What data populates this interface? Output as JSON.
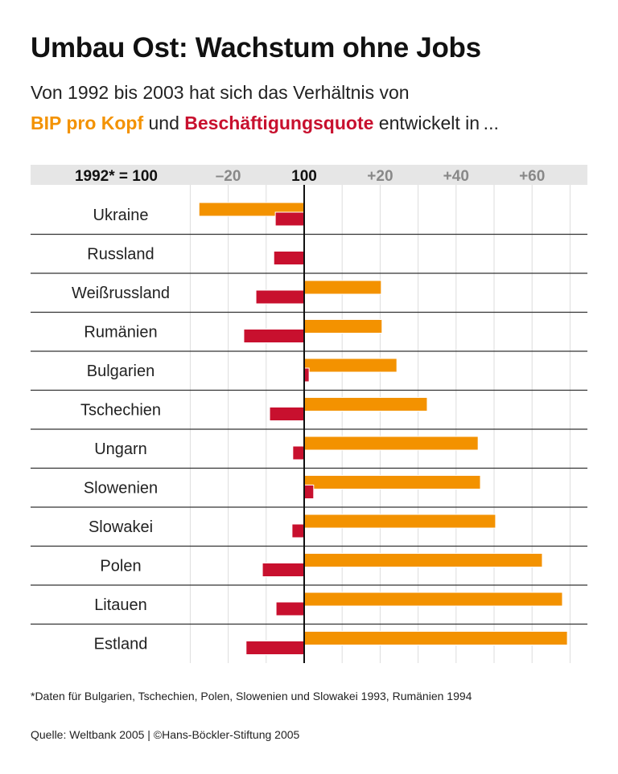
{
  "title": "Umbau Ost: Wachstum ohne Jobs",
  "subtitle_line1": "Von 1992 bis 2003 hat sich das Verhältnis von",
  "subtitle_line2": {
    "series1": "BIP pro Kopf",
    "connector": " und ",
    "series2": "Beschäftigungsquote",
    "tail": " entwickelt in ..."
  },
  "chart_data": {
    "type": "bar",
    "orientation": "horizontal",
    "index_label": "1992* = 100",
    "baseline": 100,
    "xlim": [
      -30,
      72
    ],
    "ticks": [
      {
        "v": -20,
        "label": "–20"
      },
      {
        "v": 0,
        "label": "100"
      },
      {
        "v": 20,
        "label": "+20"
      },
      {
        "v": 40,
        "label": "+40"
      },
      {
        "v": 60,
        "label": "+60"
      }
    ],
    "grid": true,
    "categories": [
      "Ukraine",
      "Russland",
      "Weißrussland",
      "Rumänien",
      "Bulgarien",
      "Tschechien",
      "Ungarn",
      "Slowenien",
      "Slowakei",
      "Polen",
      "Litauen",
      "Estland"
    ],
    "series": [
      {
        "name": "BIP pro Kopf",
        "color": "#f39200",
        "values": [
          -27.7,
          0.3,
          20.3,
          20.5,
          24.4,
          32.4,
          45.8,
          46.4,
          50.4,
          62.7,
          68.0,
          69.3
        ]
      },
      {
        "name": "Beschäftigungsquote",
        "color": "#c8102e",
        "values": [
          -7.6,
          -8.0,
          -12.7,
          -15.9,
          1.3,
          -9.1,
          -3.0,
          2.5,
          -3.2,
          -11.0,
          -7.4,
          -15.3
        ]
      }
    ]
  },
  "footnote": "*Daten für Bulgarien, Tschechien, Polen, Slowenien und Slowakei 1993, Rumänien 1994",
  "source": "Quelle: Weltbank 2005 | ©Hans-Böckler-Stiftung 2005"
}
